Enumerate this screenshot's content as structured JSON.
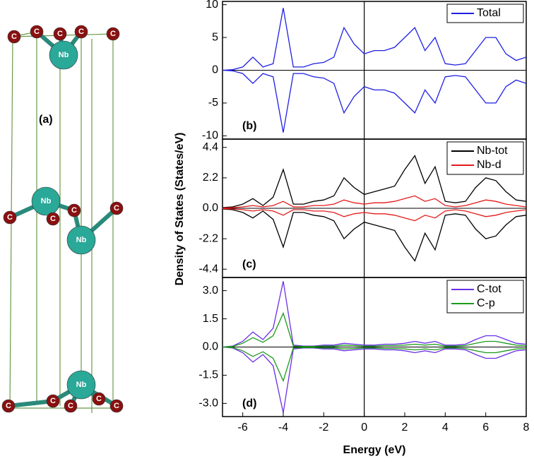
{
  "xlabel": "Energy (eV)",
  "ylabel": "Density of States (States/eV)",
  "structure": {
    "label": "(a)",
    "atoms": [
      "C",
      "C",
      "C",
      "C",
      "C",
      "Nb",
      "Nb",
      "C",
      "C",
      "C",
      "C",
      "Nb",
      "Nb",
      "C",
      "C",
      "C",
      "C",
      "C"
    ]
  },
  "chart_data": [
    {
      "type": "line",
      "annotation": "(b)",
      "xlim": [
        -7,
        8
      ],
      "ylim": [
        -10.5,
        10.5
      ],
      "yticks": [
        -10,
        -5,
        0,
        5,
        10
      ],
      "vline": 0,
      "legend": "upper right",
      "x": [
        -7,
        -6.5,
        -6,
        -5.5,
        -5,
        -4.5,
        -4,
        -3.5,
        -3,
        -2.5,
        -2,
        -1.5,
        -1,
        -0.5,
        0,
        0.5,
        1,
        1.5,
        2,
        2.5,
        3,
        3.5,
        4,
        4.5,
        5,
        5.5,
        6,
        6.5,
        7,
        7.5,
        8
      ],
      "series": [
        {
          "name": "Total",
          "color": "#1f1fe6",
          "values": [
            0,
            0.1,
            0.5,
            2,
            0.5,
            1,
            9.5,
            0.5,
            0.5,
            1,
            1.2,
            2,
            6.5,
            4,
            2.5,
            3,
            3,
            3.5,
            5,
            6.5,
            3,
            5,
            1,
            0.8,
            1,
            3,
            5,
            5,
            2.5,
            1.5,
            2
          ],
          "down_values": [
            0,
            -0.1,
            -0.5,
            -2,
            -0.5,
            -1,
            -9.5,
            -0.5,
            -0.5,
            -1,
            -1.2,
            -2,
            -6.5,
            -4,
            -2.5,
            -3,
            -3,
            -3.5,
            -5,
            -6.5,
            -3,
            -5,
            -1,
            -0.8,
            -1,
            -3,
            -5,
            -5,
            -2.5,
            -1.5,
            -2
          ]
        }
      ]
    },
    {
      "type": "line",
      "annotation": "(c)",
      "xlim": [
        -7,
        8
      ],
      "ylim": [
        -5,
        5
      ],
      "yticks": [
        -4.4,
        -2.2,
        {
          "value": 0,
          "label": "0.0"
        },
        2.2,
        4.4
      ],
      "vline": 0,
      "legend": "upper right",
      "x": [
        -7,
        -6.5,
        -6,
        -5.5,
        -5,
        -4.5,
        -4,
        -3.5,
        -3,
        -2.5,
        -2,
        -1.5,
        -1,
        -0.5,
        0,
        0.5,
        1,
        1.5,
        2,
        2.5,
        3,
        3.5,
        4,
        4.5,
        5,
        5.5,
        6,
        6.5,
        7,
        7.5,
        8
      ],
      "series": [
        {
          "name": "Nb-tot",
          "color": "#000000",
          "values": [
            0.05,
            0.1,
            0.3,
            0.7,
            0.2,
            0.8,
            2.8,
            0.3,
            0.3,
            0.5,
            0.6,
            0.9,
            2.2,
            1.5,
            1,
            1.2,
            1.4,
            1.6,
            2.8,
            3.8,
            1.8,
            3,
            0.5,
            0.4,
            0.5,
            1.5,
            2.2,
            2,
            1.2,
            0.6,
            0.5
          ],
          "down_values": [
            -0.05,
            -0.1,
            -0.3,
            -0.7,
            -0.2,
            -0.8,
            -2.8,
            -0.3,
            -0.3,
            -0.5,
            -0.6,
            -0.9,
            -2.2,
            -1.5,
            -1,
            -1.2,
            -1.4,
            -1.6,
            -2.8,
            -3.8,
            -1.8,
            -3,
            -0.5,
            -0.4,
            -0.5,
            -1.5,
            -2.2,
            -2,
            -1.2,
            -0.6,
            -0.5
          ]
        },
        {
          "name": "Nb-d",
          "color": "#e61a1a",
          "values": [
            0.02,
            0.05,
            0.1,
            0.2,
            0.1,
            0.2,
            0.5,
            0.1,
            0.1,
            0.2,
            0.2,
            0.3,
            0.6,
            0.4,
            0.3,
            0.4,
            0.4,
            0.5,
            0.7,
            0.9,
            0.5,
            0.7,
            0.2,
            0.1,
            0.2,
            0.4,
            0.6,
            0.5,
            0.3,
            0.2,
            0.1
          ],
          "down_values": [
            -0.02,
            -0.05,
            -0.1,
            -0.2,
            -0.1,
            -0.2,
            -0.5,
            -0.1,
            -0.1,
            -0.2,
            -0.2,
            -0.3,
            -0.6,
            -0.4,
            -0.3,
            -0.4,
            -0.4,
            -0.5,
            -0.7,
            -0.9,
            -0.5,
            -0.7,
            -0.2,
            -0.1,
            -0.2,
            -0.4,
            -0.6,
            -0.5,
            -0.3,
            -0.2,
            -0.1
          ]
        }
      ]
    },
    {
      "type": "line",
      "annotation": "(d)",
      "xlim": [
        -7,
        8
      ],
      "ylim": [
        -3.7,
        3.7
      ],
      "yticks": [
        {
          "value": -3,
          "label": "-3.0"
        },
        -1.5,
        {
          "value": 0,
          "label": "0.0"
        },
        1.5,
        {
          "value": 3,
          "label": "3.0"
        }
      ],
      "xticks": [
        -6,
        -4,
        -2,
        0,
        2,
        4,
        6,
        8
      ],
      "vline": 0,
      "legend": "upper right",
      "x": [
        -7,
        -6.5,
        -6,
        -5.5,
        -5,
        -4.5,
        -4,
        -3.5,
        -3,
        -2.5,
        -2,
        -1.5,
        -1,
        -0.5,
        0,
        0.5,
        1,
        1.5,
        2,
        2.5,
        3,
        3.5,
        4,
        4.5,
        5,
        5.5,
        6,
        6.5,
        7,
        7.5,
        8
      ],
      "series": [
        {
          "name": "C-tot",
          "color": "#6a2ee6",
          "values": [
            0,
            0.05,
            0.3,
            0.8,
            0.4,
            1,
            3.5,
            0.1,
            0.05,
            0.05,
            0.1,
            0.1,
            0.2,
            0.15,
            0.1,
            0.1,
            0.15,
            0.15,
            0.2,
            0.3,
            0.2,
            0.3,
            0.1,
            0.1,
            0.15,
            0.4,
            0.6,
            0.6,
            0.4,
            0.2,
            0.15
          ],
          "down_values": [
            0,
            -0.05,
            -0.3,
            -0.8,
            -0.4,
            -1,
            -3.5,
            -0.1,
            -0.05,
            -0.05,
            -0.1,
            -0.1,
            -0.2,
            -0.15,
            -0.1,
            -0.1,
            -0.15,
            -0.15,
            -0.2,
            -0.3,
            -0.2,
            -0.3,
            -0.1,
            -0.1,
            -0.15,
            -0.4,
            -0.6,
            -0.6,
            -0.4,
            -0.2,
            -0.15
          ]
        },
        {
          "name": "C-p",
          "color": "#1a9a1a",
          "values": [
            0,
            0.03,
            0.2,
            0.5,
            0.25,
            0.6,
            1.8,
            0.05,
            0.03,
            0.03,
            0.05,
            0.05,
            0.1,
            0.08,
            0.05,
            0.05,
            0.08,
            0.08,
            0.1,
            0.15,
            0.1,
            0.15,
            0.05,
            0.05,
            0.08,
            0.2,
            0.3,
            0.3,
            0.2,
            0.1,
            0.08
          ],
          "down_values": [
            0,
            -0.03,
            -0.2,
            -0.5,
            -0.25,
            -0.6,
            -1.8,
            -0.05,
            -0.03,
            -0.03,
            -0.05,
            -0.05,
            -0.1,
            -0.08,
            -0.05,
            -0.05,
            -0.08,
            -0.08,
            -0.1,
            -0.15,
            -0.1,
            -0.15,
            -0.05,
            -0.05,
            -0.08,
            -0.2,
            -0.3,
            -0.3,
            -0.2,
            -0.1,
            -0.08
          ]
        }
      ]
    }
  ]
}
